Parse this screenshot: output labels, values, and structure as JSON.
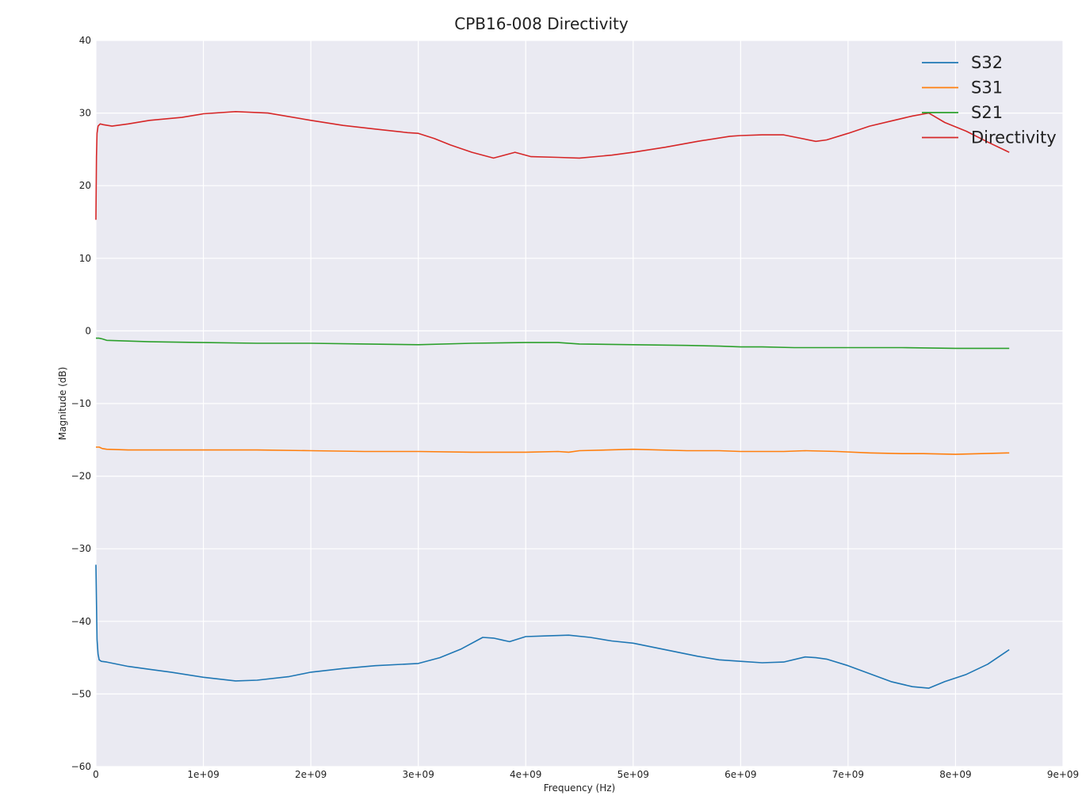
{
  "chart_data": {
    "type": "line",
    "title": "CPB16-008 Directivity",
    "xlabel": "Frequency (Hz)",
    "ylabel": "Magnitude (dB)",
    "xlim": [
      0,
      9000000000
    ],
    "ylim": [
      -60,
      40
    ],
    "x_ticks": [
      0,
      1000000000,
      2000000000,
      3000000000,
      4000000000,
      5000000000,
      6000000000,
      7000000000,
      8000000000,
      9000000000
    ],
    "x_tick_labels": [
      "0",
      "1e+09",
      "2e+09",
      "3e+09",
      "4e+09",
      "5e+09",
      "6e+09",
      "7e+09",
      "8e+09",
      "9e+09"
    ],
    "y_ticks": [
      -60,
      -50,
      -40,
      -30,
      -20,
      -10,
      0,
      10,
      20,
      30,
      40
    ],
    "y_tick_labels": [
      "−60",
      "−50",
      "−40",
      "−30",
      "−20",
      "−10",
      "0",
      "10",
      "20",
      "30",
      "40"
    ],
    "grid": true,
    "legend_position": "top-right",
    "background_color": "#eaeaf2",
    "series": [
      {
        "name": "S32",
        "color": "#1f77b4",
        "x": [
          0,
          10000000,
          20000000,
          30000000,
          50000000,
          100000000,
          300000000,
          500000000,
          700000000,
          1000000000,
          1300000000,
          1500000000,
          1800000000,
          2000000000,
          2300000000,
          2600000000,
          3000000000,
          3200000000,
          3400000000,
          3600000000,
          3700000000,
          3850000000,
          4000000000,
          4200000000,
          4400000000,
          4600000000,
          4800000000,
          5000000000,
          5200000000,
          5400000000,
          5600000000,
          5800000000,
          6000000000,
          6200000000,
          6400000000,
          6600000000,
          6700000000,
          6800000000,
          7000000000,
          7200000000,
          7400000000,
          7600000000,
          7750000000,
          7900000000,
          8100000000,
          8300000000,
          8500000000
        ],
        "values": [
          -32.2,
          -42.5,
          -44.5,
          -45.3,
          -45.5,
          -45.6,
          -46.2,
          -46.6,
          -47.0,
          -47.7,
          -48.2,
          -48.1,
          -47.6,
          -47.0,
          -46.5,
          -46.1,
          -45.8,
          -45.0,
          -43.8,
          -42.2,
          -42.3,
          -42.8,
          -42.1,
          -42.0,
          -41.9,
          -42.2,
          -42.7,
          -43.0,
          -43.6,
          -44.2,
          -44.8,
          -45.3,
          -45.5,
          -45.7,
          -45.6,
          -44.9,
          -45.0,
          -45.2,
          -46.1,
          -47.2,
          -48.3,
          -49.0,
          -49.2,
          -48.3,
          -47.3,
          -45.9,
          -43.9
        ]
      },
      {
        "name": "S31",
        "color": "#ff7f0e",
        "x": [
          0,
          30000000,
          60000000,
          100000000,
          300000000,
          1000000000,
          1500000000,
          2000000000,
          2500000000,
          3000000000,
          3500000000,
          4000000000,
          4300000000,
          4400000000,
          4500000000,
          5000000000,
          5500000000,
          5800000000,
          6000000000,
          6200000000,
          6400000000,
          6600000000,
          6900000000,
          7200000000,
          7500000000,
          7700000000,
          8000000000,
          8500000000
        ],
        "values": [
          -16.0,
          -16.0,
          -16.2,
          -16.3,
          -16.4,
          -16.4,
          -16.4,
          -16.5,
          -16.6,
          -16.6,
          -16.7,
          -16.7,
          -16.6,
          -16.7,
          -16.5,
          -16.3,
          -16.5,
          -16.5,
          -16.6,
          -16.6,
          -16.6,
          -16.5,
          -16.6,
          -16.8,
          -16.9,
          -16.9,
          -17.0,
          -16.8
        ]
      },
      {
        "name": "S21",
        "color": "#2ca02c",
        "x": [
          0,
          30000000,
          60000000,
          100000000,
          300000000,
          500000000,
          1000000000,
          1500000000,
          2000000000,
          2500000000,
          3000000000,
          3500000000,
          4000000000,
          4300000000,
          4500000000,
          5000000000,
          5500000000,
          5800000000,
          6000000000,
          6200000000,
          6500000000,
          7000000000,
          7500000000,
          8000000000,
          8500000000
        ],
        "values": [
          -1.0,
          -1.0,
          -1.1,
          -1.3,
          -1.4,
          -1.5,
          -1.6,
          -1.7,
          -1.7,
          -1.8,
          -1.9,
          -1.7,
          -1.6,
          -1.6,
          -1.8,
          -1.9,
          -2.0,
          -2.1,
          -2.2,
          -2.2,
          -2.3,
          -2.3,
          -2.3,
          -2.4,
          -2.4
        ]
      },
      {
        "name": "Directivity",
        "color": "#d62728",
        "x": [
          0,
          5000000,
          10000000,
          20000000,
          40000000,
          70000000,
          150000000,
          300000000,
          500000000,
          800000000,
          1000000000,
          1300000000,
          1600000000,
          2000000000,
          2300000000,
          2600000000,
          2900000000,
          3000000000,
          3150000000,
          3300000000,
          3500000000,
          3700000000,
          3900000000,
          4050000000,
          4300000000,
          4500000000,
          4800000000,
          5000000000,
          5300000000,
          5600000000,
          5900000000,
          6000000000,
          6200000000,
          6400000000,
          6700000000,
          6800000000,
          7000000000,
          7200000000,
          7400000000,
          7600000000,
          7750000000,
          7900000000,
          8100000000,
          8300000000,
          8500000000
        ],
        "values": [
          15.3,
          24.0,
          27.2,
          28.2,
          28.5,
          28.4,
          28.2,
          28.5,
          29.0,
          29.4,
          29.9,
          30.2,
          30.0,
          29.0,
          28.3,
          27.8,
          27.3,
          27.2,
          26.5,
          25.6,
          24.6,
          23.8,
          24.6,
          24.0,
          23.9,
          23.8,
          24.2,
          24.6,
          25.3,
          26.1,
          26.8,
          26.9,
          27.0,
          27.0,
          26.1,
          26.3,
          27.2,
          28.2,
          28.9,
          29.6,
          30.0,
          28.7,
          27.5,
          26.0,
          24.6
        ]
      }
    ]
  }
}
